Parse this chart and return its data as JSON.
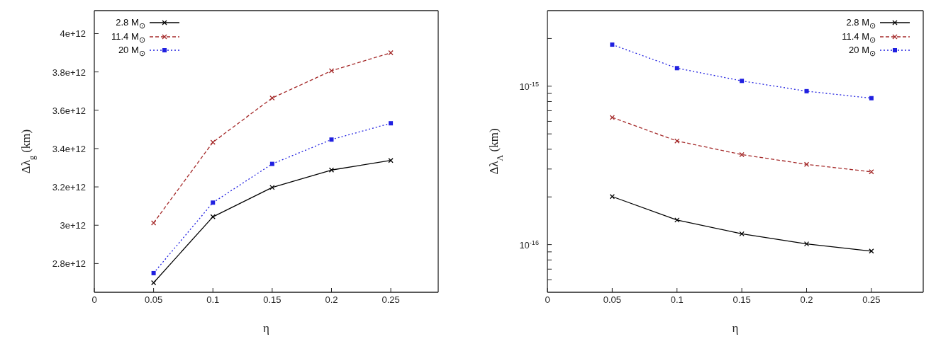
{
  "chart_data": [
    {
      "type": "line",
      "xlabel": "η",
      "ylabel": "Δλ$_{g}$ (km)",
      "x": [
        0.05,
        0.1,
        0.15,
        0.2,
        0.25
      ],
      "xlim": [
        0,
        0.29
      ],
      "xticks": [
        0,
        0.05,
        0.1,
        0.15,
        0.2,
        0.25
      ],
      "ylim": [
        2650000000000.0,
        4120000000000.0
      ],
      "yticks": [
        {
          "value": 2800000000000.0,
          "label": "2.8e+12"
        },
        {
          "value": 3000000000000.0,
          "label": "3e+12"
        },
        {
          "value": 3200000000000.0,
          "label": "3.2e+12"
        },
        {
          "value": 3400000000000.0,
          "label": "3.4e+12"
        },
        {
          "value": 3600000000000.0,
          "label": "3.6e+12"
        },
        {
          "value": 3800000000000.0,
          "label": "3.8e+12"
        },
        {
          "value": 4000000000000.0,
          "label": "4e+12"
        }
      ],
      "legend": "top left",
      "grid": false,
      "series": [
        {
          "name": "2.8 M$_{⊙}$",
          "color": "#000000",
          "marker": "cross",
          "line_style": "solid",
          "values": [
            2700000000000.0,
            3044000000000.0,
            3197000000000.0,
            3288000000000.0,
            3338000000000.0
          ]
        },
        {
          "name": "11.4 M$_{⊙}$",
          "color": "#a52a2a",
          "marker": "cross",
          "line_style": "dashed",
          "values": [
            3012000000000.0,
            3433000000000.0,
            3664000000000.0,
            3806000000000.0,
            3900000000000.0
          ]
        },
        {
          "name": "20 M$_{⊙}$",
          "color": "#2020e0",
          "marker": "square",
          "line_style": "dotted",
          "values": [
            2750000000000.0,
            3118000000000.0,
            3320000000000.0,
            3447000000000.0,
            3532000000000.0
          ]
        }
      ]
    },
    {
      "type": "line",
      "xlabel": "η",
      "ylabel": "Δλ$_{Λ}$ (km)",
      "x": [
        0.05,
        0.1,
        0.15,
        0.2,
        0.25
      ],
      "xlim": [
        0,
        0.29
      ],
      "xticks": [
        0,
        0.05,
        0.1,
        0.15,
        0.2,
        0.25
      ],
      "ylim": [
        5e-17,
        3e-15
      ],
      "log": "y",
      "yticks": [
        {
          "value": 6e-17,
          "label": null
        },
        {
          "value": 7e-17,
          "label": null
        },
        {
          "value": 8e-17,
          "label": null
        },
        {
          "value": 9e-17,
          "label": null
        },
        {
          "value": 1e-16,
          "label": "10$^{-16}$"
        },
        {
          "value": 2e-16,
          "label": null
        },
        {
          "value": 3e-16,
          "label": null
        },
        {
          "value": 4e-16,
          "label": null
        },
        {
          "value": 5e-16,
          "label": null
        },
        {
          "value": 6e-16,
          "label": null
        },
        {
          "value": 7e-16,
          "label": null
        },
        {
          "value": 8e-16,
          "label": null
        },
        {
          "value": 9e-16,
          "label": null
        },
        {
          "value": 1e-15,
          "label": "10$^{-15}$"
        },
        {
          "value": 2e-15,
          "label": null
        }
      ],
      "legend": "top right",
      "grid": false,
      "series": [
        {
          "name": "2.8 M$_{⊙}$",
          "color": "#000000",
          "marker": "cross",
          "line_style": "solid",
          "values": [
            2.01e-16,
            1.43e-16,
            1.17e-16,
            1.01e-16,
            9.1e-17
          ]
        },
        {
          "name": "11.4 M$_{⊙}$",
          "color": "#a52a2a",
          "marker": "cross",
          "line_style": "dashed",
          "values": [
            6.35e-16,
            4.51e-16,
            3.7e-16,
            3.21e-16,
            2.88e-16
          ]
        },
        {
          "name": "20 M$_{⊙}$",
          "color": "#2020e0",
          "marker": "square",
          "line_style": "dotted",
          "values": [
            1.83e-15,
            1.3e-15,
            1.08e-15,
            9.3e-16,
            8.4e-16
          ]
        }
      ]
    }
  ]
}
